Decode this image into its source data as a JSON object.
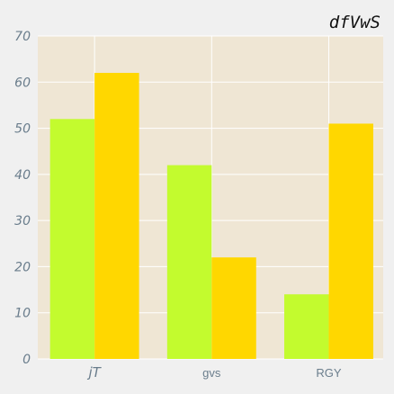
{
  "chart_data": {
    "type": "bar",
    "title": "dfVwS",
    "categories": [
      "jT",
      "gvs",
      "RGY"
    ],
    "series": [
      {
        "values": [
          52,
          42,
          14
        ],
        "color": "#c3fb2e"
      },
      {
        "values": [
          62,
          22,
          51
        ],
        "color": "#ffd700"
      }
    ],
    "ylim": [
      0,
      70
    ],
    "yticks": [
      "0",
      "10",
      "20",
      "30",
      "40",
      "50",
      "60",
      "70"
    ],
    "grid": true,
    "plot_background": "#efe6d4",
    "xlabel": "",
    "ylabel": ""
  }
}
